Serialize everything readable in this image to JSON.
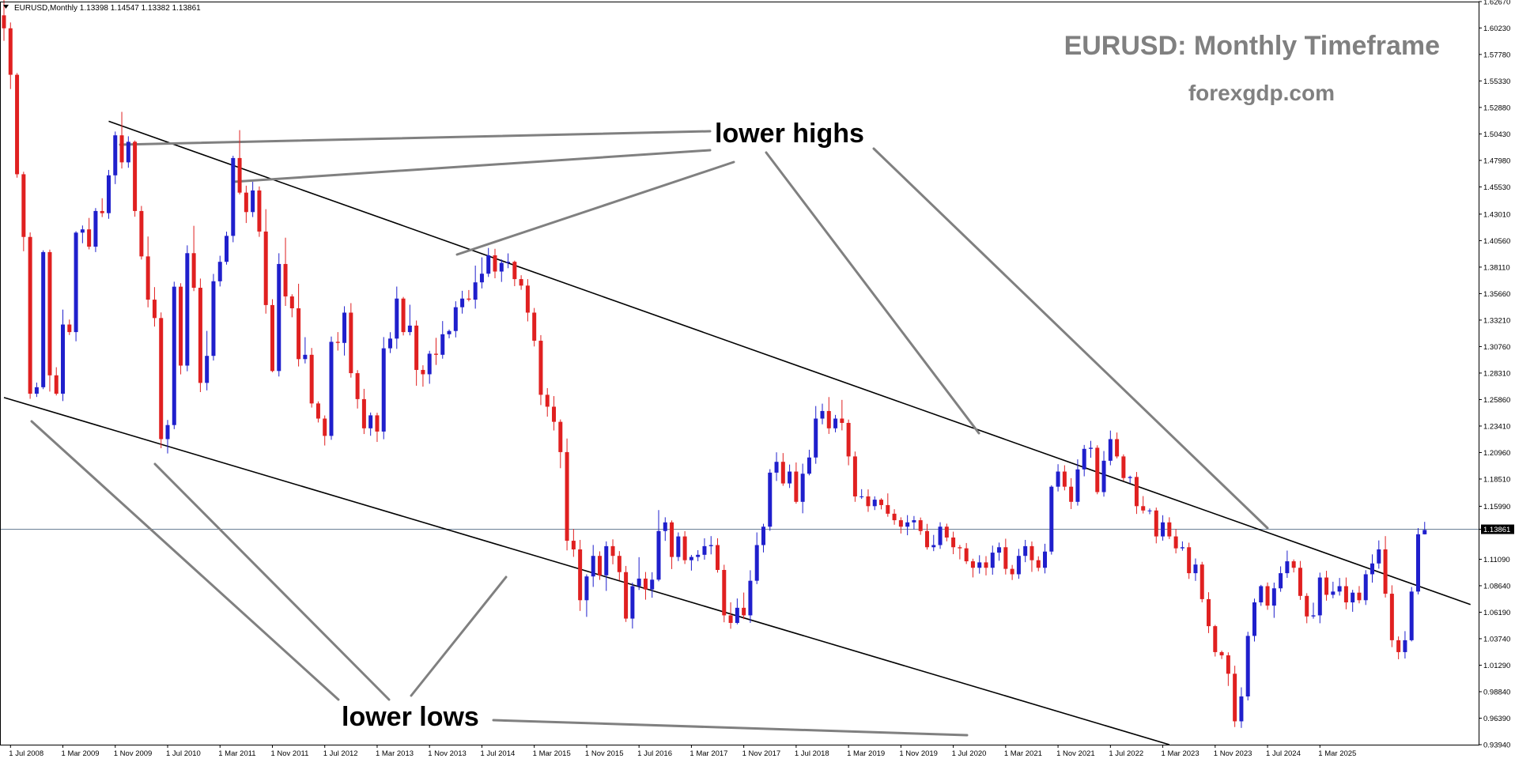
{
  "header": {
    "symbol_info": "EURUSD,Monthly  1.13398 1.14547 1.13382 1.13861",
    "watermark_title": "EURUSD: Monthly Timeframe",
    "watermark_site": "forexgdp.com"
  },
  "annotations": {
    "lower_highs": "lower highs",
    "lower_lows": "lower lows"
  },
  "colors": {
    "bull": "#1f1fcc",
    "bear": "#e02020",
    "trendline": "#000000",
    "callout": "#808080",
    "price_line": "#6b8096",
    "watermark": "#808080"
  },
  "chart_data": {
    "type": "candlestick",
    "title": "EURUSD: Monthly Timeframe",
    "symbol": "EURUSD",
    "timeframe": "Monthly",
    "current_price": "1.13861",
    "ohlc": {
      "open": 1.13398,
      "high": 1.14547,
      "low": 1.13382,
      "close": 1.13861
    },
    "ylim": [
      0.9394,
      1.6267
    ],
    "y_ticks": [
      "1.62670",
      "1.60230",
      "1.57780",
      "1.55330",
      "1.52880",
      "1.50430",
      "1.47980",
      "1.45530",
      "1.43010",
      "1.40560",
      "1.38110",
      "1.35660",
      "1.33210",
      "1.30760",
      "1.28310",
      "1.25860",
      "1.23410",
      "1.20960",
      "1.18510",
      "1.15990",
      "1.13861",
      "1.11090",
      "1.08640",
      "1.06190",
      "1.03740",
      "1.01290",
      "0.98840",
      "0.96390",
      "0.93940"
    ],
    "x_ticks": [
      "1 Jul 2008",
      "1 Mar 2009",
      "1 Nov 2009",
      "1 Jul 2010",
      "1 Mar 2011",
      "1 Nov 2011",
      "1 Jul 2012",
      "1 Mar 2013",
      "1 Nov 2013",
      "1 Jul 2014",
      "1 Mar 2015",
      "1 Nov 2015",
      "1 Jul 2016",
      "1 Mar 2017",
      "1 Nov 2017",
      "1 Jul 2018",
      "1 Mar 2019",
      "1 Nov 2019",
      "1 Jul 2020",
      "1 Mar 2021",
      "1 Nov 2021",
      "1 Jul 2022",
      "1 Mar 2023",
      "1 Nov 2023",
      "1 Jul 2024",
      "1 Mar 2025"
    ],
    "start_month": "2008-06",
    "trend_channel": {
      "upper": {
        "from": [
          "2009-10",
          1.516
        ],
        "to": [
          "2027-02",
          1.069
        ]
      },
      "lower": {
        "from": [
          "2008-06",
          1.2605
        ],
        "to": [
          "2023-04",
          0.9394
        ]
      }
    },
    "closes": [
      1.602,
      1.559,
      1.467,
      1.409,
      1.264,
      1.27,
      1.395,
      1.281,
      1.264,
      1.328,
      1.321,
      1.413,
      1.416,
      1.4,
      1.433,
      1.431,
      1.466,
      1.503,
      1.478,
      1.497,
      1.433,
      1.391,
      1.351,
      1.334,
      1.222,
      1.235,
      1.363,
      1.29,
      1.394,
      1.362,
      1.274,
      1.299,
      1.368,
      1.386,
      1.41,
      1.482,
      1.45,
      1.432,
      1.452,
      1.414,
      1.346,
      1.285,
      1.384,
      1.354,
      1.343,
      1.296,
      1.3,
      1.255,
      1.241,
      1.225,
      1.312,
      1.311,
      1.339,
      1.283,
      1.259,
      1.232,
      1.244,
      1.229,
      1.306,
      1.315,
      1.352,
      1.321,
      1.327,
      1.286,
      1.282,
      1.301,
      1.3,
      1.319,
      1.322,
      1.344,
      1.352,
      1.351,
      1.367,
      1.375,
      1.392,
      1.377,
      1.385,
      1.386,
      1.37,
      1.364,
      1.339,
      1.313,
      1.263,
      1.252,
      1.238,
      1.21,
      1.128,
      1.12,
      1.073,
      1.095,
      1.114,
      1.096,
      1.123,
      1.114,
      1.099,
      1.056,
      1.086,
      1.093,
      1.083,
      1.092,
      1.137,
      1.145,
      1.113,
      1.132,
      1.11,
      1.113,
      1.115,
      1.123,
      1.124,
      1.101,
      1.059,
      1.052,
      1.066,
      1.059,
      1.091,
      1.124,
      1.141,
      1.191,
      1.201,
      1.181,
      1.192,
      1.164,
      1.19,
      1.205,
      1.241,
      1.248,
      1.232,
      1.241,
      1.237,
      1.206,
      1.169,
      1.169,
      1.16,
      1.166,
      1.161,
      1.153,
      1.147,
      1.141,
      1.145,
      1.147,
      1.137,
      1.122,
      1.124,
      1.141,
      1.131,
      1.122,
      1.121,
      1.109,
      1.103,
      1.108,
      1.103,
      1.117,
      1.122,
      1.102,
      1.097,
      1.114,
      1.123,
      1.11,
      1.103,
      1.118,
      1.178,
      1.192,
      1.178,
      1.164,
      1.194,
      1.213,
      1.214,
      1.173,
      1.202,
      1.222,
      1.206,
      1.186,
      1.187,
      1.16,
      1.156,
      1.156,
      1.132,
      1.145,
      1.132,
      1.121,
      1.122,
      1.098,
      1.106,
      1.074,
      1.049,
      1.025,
      1.022,
      1.005,
      0.961,
      0.984,
      1.04,
      1.071,
      1.086,
      1.068,
      1.084,
      1.098,
      1.109,
      1.103,
      1.077,
      1.058,
      1.059,
      1.094,
      1.078,
      1.081,
      1.086,
      1.071,
      1.08,
      1.073,
      1.097,
      1.107,
      1.12,
      1.079,
      1.036,
      1.025,
      1.036,
      1.081,
      1.134,
      1.138
    ],
    "wick_up": [
      0.0152,
      0.0054,
      0.0016,
      0.0023,
      0.0042,
      0.0043,
      0.0017,
      0.0023,
      0.0075,
      0.0138,
      0.0046,
      0.0013,
      0.0036,
      0.0106,
      0.0027,
      0.0118,
      0.005,
      0.0035,
      0.0217,
      0.0051,
      0.0012,
      0.0047,
      0.0184,
      0.0116,
      0.0052,
      0.0047,
      0.0046,
      0.0032,
      0.0072,
      0.0253,
      0.0085,
      0.0231,
      0.0068,
      0.0056,
      0.0039,
      0.0021,
      0.0258,
      0.0064,
      0.008,
      0.0037,
      0.0207,
      0.0054,
      0.0099,
      0.0243,
      0.002,
      0.0227,
      0.0163,
      0.0063,
      0.0019,
      0.0029,
      0.0049,
      0.009,
      0.0059,
      0.0088,
      0.0028,
      0.0095,
      0.0026,
      0.0024,
      0.0104,
      0.0059,
      0.0111,
      0.0015,
      0.0193,
      0.0047,
      0.0043,
      0.0027,
      0.0147,
      0.0122,
      0.0014,
      0.0055,
      0.0072,
      0.0079,
      0.0155,
      0.0151,
      0.0068,
      0.006,
      0.0032,
      0.0078,
      0.0011,
      0.0036,
      0.006,
      0.0043,
      0.0052,
      0.0062,
      0.0098,
      0.0022,
      0.0125,
      0.0109,
      0.0088,
      0.0019,
      0.0101,
      0.0042,
      0.0044,
      0.0063,
      0.0044,
      0.0057,
      0.0032,
      0.0198,
      0.0061,
      0.0069,
      0.0194,
      0.0047,
      0.0018,
      0.0037,
      0.0049,
      0.0019,
      0.0043,
      0.0073,
      0.0083,
      0.0063,
      0.0048,
      0.0121,
      0.0086,
      0.0141,
      0.0097,
      0.0117,
      0.0027,
      0.0032,
      0.0088,
      0.0081,
      0.0065,
      0.0084,
      0.0093,
      0.0072,
      0.0116,
      0.0068,
      0.0129,
      0.0034,
      0.0173,
      0.0031,
      0.0045,
      0.0067,
      0.0065,
      0.0031,
      0.0013,
      0.0108,
      0.0042,
      0.0027,
      0.0067,
      0.0039,
      0.0025,
      0.0066,
      0.0094,
      0.0041,
      0.0028,
      0.0054,
      0.0021,
      0.0049,
      0.0024,
      0.0066,
      0.0058,
      0.0065,
      0.0043,
      0.0079,
      0.0036,
      0.0065,
      0.0058,
      0.0043,
      0.0036,
      0.0072,
      0.0013,
      0.0068,
      0.0058,
      0.0079,
      0.0093,
      0.0036,
      0.0064,
      0.0023,
      0.009,
      0.0079,
      0.0061,
      0.0019,
      0.0012,
      0.0046,
      0.0093,
      0.0018,
      0.0027,
      0.0066,
      0.0047,
      0.0069,
      0.0054,
      0.0042,
      0.0056,
      0.0025,
      0.0064,
      0.0012,
      0.0014,
      0.0028,
      0.0074,
      0.0084,
      0.0038,
      0.0035,
      0.0012,
      0.0034,
      0.0053,
      0.0063,
      0.0099,
      0.0017,
      0.0063,
      0.0025,
      0.0117,
      0.0045,
      0.0062,
      0.0091,
      0.0076,
      0.008,
      0.0026,
      0.0061,
      0.0038,
      0.0084,
      0.0083,
      0.0123,
      0.0078,
      0.0035,
      0.0084,
      0.0042,
      0.0057,
      0.0016,
      0.0098,
      0.0213,
      0.0011,
      0.0077
    ],
    "wick_down": [
      0.0116,
      0.0132,
      0.0032,
      0.0132,
      0.0047,
      0.003,
      0.0018,
      0.015,
      0.0016,
      0.0068,
      0.0027,
      0.0085,
      0.0098,
      0.0025,
      0.005,
      0.0036,
      0.0052,
      0.0081,
      0.0057,
      0.005,
      0.0053,
      0.0029,
      0.0071,
      0.0079,
      0.0084,
      0.0133,
      0.0038,
      0.0081,
      0.0052,
      0.0031,
      0.0085,
      0.0069,
      0.0043,
      0.0048,
      0.0026,
      0.0059,
      0.0017,
      0.0101,
      0.0046,
      0.0049,
      0.0079,
      0.0011,
      0.0051,
      0.0088,
      0.0083,
      0.0068,
      0.004,
      0.0038,
      0.0036,
      0.0089,
      0.0036,
      0.0071,
      0.0117,
      0.0041,
      0.0087,
      0.0053,
      0.0069,
      0.0096,
      0.0071,
      0.0044,
      0.0095,
      0.0031,
      0.003,
      0.0146,
      0.0115,
      0.0088,
      0.0094,
      0.0036,
      0.0037,
      0.0059,
      0.0059,
      0.0016,
      0.0083,
      0.0056,
      0.003,
      0.0062,
      0.0096,
      0.0049,
      0.0065,
      0.0039,
      0.0081,
      0.0053,
      0.0095,
      0.0092,
      0.008,
      0.0149,
      0.0089,
      0.0069,
      0.0099,
      0.0154,
      0.0097,
      0.0042,
      0.0144,
      0.0078,
      0.0077,
      0.0031,
      0.0092,
      0.0035,
      0.0095,
      0.0077,
      0.0015,
      0.0091,
      0.0112,
      0.0038,
      0.0035,
      0.0096,
      0.0039,
      0.0045,
      0.0076,
      0.0025,
      0.0064,
      0.0054,
      0.0013,
      0.0035,
      0.007,
      0.0031,
      0.0068,
      0.0038,
      0.0077,
      0.0022,
      0.0042,
      0.0017,
      0.0106,
      0.0015,
      0.0058,
      0.0053,
      0.0052,
      0.0037,
      0.0069,
      0.0082,
      0.005,
      0.0023,
      0.0053,
      0.0036,
      0.004,
      0.0028,
      0.0042,
      0.0063,
      0.0079,
      0.0065,
      0.0035,
      0.0022,
      0.0036,
      0.0035,
      0.0035,
      0.0064,
      0.0102,
      0.0025,
      0.0089,
      0.0054,
      0.007,
      0.0064,
      0.0075,
      0.0052,
      0.0053,
      0.0042,
      0.0058,
      0.0108,
      0.0032,
      0.0052,
      0.0028,
      0.0044,
      0.0034,
      0.0067,
      0.0035,
      0.0064,
      0.0082,
      0.002,
      0.0042,
      0.0042,
      0.0018,
      0.0024,
      0.0046,
      0.0072,
      0.0028,
      0.0035,
      0.0064,
      0.0039,
      0.0024,
      0.0047,
      0.0022,
      0.0053,
      0.0071,
      0.003,
      0.0064,
      0.0041,
      0.0034,
      0.0113,
      0.0053,
      0.0061,
      0.0037,
      0.0052,
      0.0032,
      0.0039,
      0.0113,
      0.0032,
      0.0043,
      0.0043,
      0.0037,
      0.0063,
      0.0021,
      0.0073,
      0.0054,
      0.0032,
      0.0037,
      0.0064,
      0.0087,
      0.0029,
      0.0044,
      0.0077,
      0.0048,
      0.0035,
      0.0064,
      0.0066,
      0.0059,
      0.0011,
      0.0026,
      0.0066,
      0.0035,
      0.0101,
      0.0048,
      0.0076,
      0.0033,
      0.0001
    ]
  }
}
